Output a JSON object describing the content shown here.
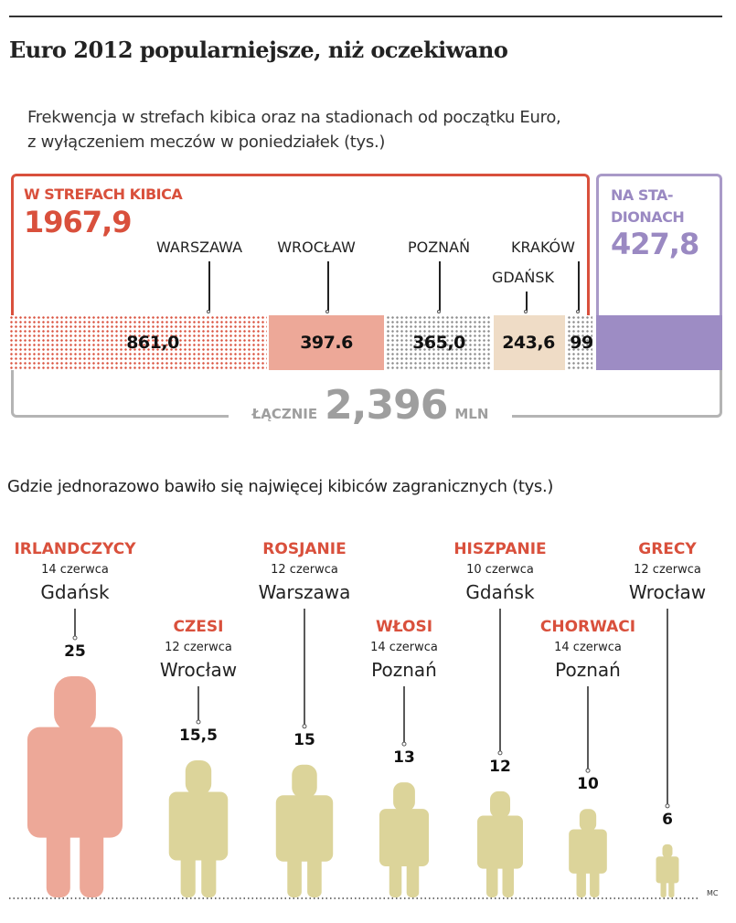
{
  "title": "Euro 2012 popularniejsze, niż oczekiwano",
  "subtitle_lines": [
    "Frekwencja w strefach kibica oraz na stadionach od początku Euro,",
    "z wyłączeniem meczów w poniedziałek (tys.)"
  ],
  "fan_zones": {
    "label": "W STREFACH KIBICA",
    "total": "1967,9"
  },
  "stadiums": {
    "label_line1": "NA STA-",
    "label_line2": "DIONACH",
    "total": "427,8"
  },
  "total": {
    "prefix": "ŁĄCZNIE",
    "value": "2,396",
    "unit": "MLN"
  },
  "subtitle2": "Gdzie jednorazowo bawiło się najwięcej kibiców zagranicznych (tys.)",
  "credit": "MC",
  "colors": {
    "red": "#d9503c",
    "salmon": "#eda898",
    "beige": "#efdcc6",
    "purple": "#9d8cc4",
    "olive": "#dcd49a",
    "gray": "#9e9e9e"
  },
  "chart_data": [
    {
      "type": "bar",
      "orientation": "horizontal-stacked",
      "title": "Frekwencja w strefach kibica oraz na stadionach (tys.)",
      "categories": [
        "WARSZAWA",
        "WROCŁAW",
        "POZNAŃ",
        "GDAŃSK",
        "KRAKÓW",
        "NA STADIONACH"
      ],
      "values": [
        861.0,
        397.6,
        365.0,
        243.6,
        99,
        427.8
      ],
      "value_labels": [
        "861,0",
        "397.6",
        "365,0",
        "243,6",
        "99",
        ""
      ]
    },
    {
      "type": "bar",
      "title": "Gdzie jednorazowo bawiło się najwięcej kibiców zagranicznych (tys.)",
      "mark": "human-figure",
      "categories": [
        "IRLANDCZYCY",
        "CZESI",
        "ROSJANIE",
        "WŁOSI",
        "HISZPANIE",
        "CHORWACI",
        "GRECY"
      ],
      "dates": [
        "14 czerwca",
        "12 czerwca",
        "12 czerwca",
        "14 czerwca",
        "10 czerwca",
        "14 czerwca",
        "12 czerwca"
      ],
      "cities": [
        "Gdańsk",
        "Wrocław",
        "Warszawa",
        "Poznań",
        "Gdańsk",
        "Poznań",
        "Wrocław"
      ],
      "values": [
        25,
        15.5,
        15,
        13,
        12,
        10,
        6
      ],
      "value_labels": [
        "25",
        "15,5",
        "15",
        "13",
        "12",
        "10",
        "6"
      ]
    }
  ]
}
